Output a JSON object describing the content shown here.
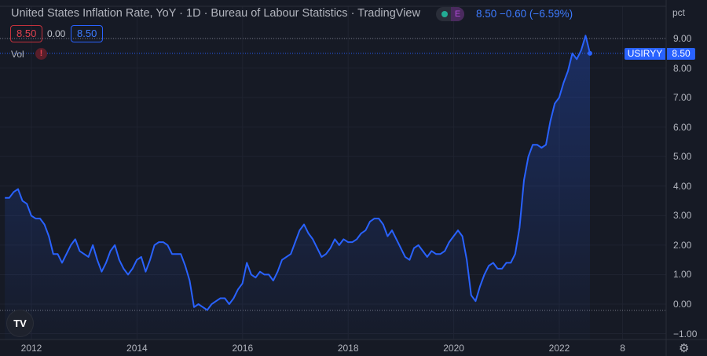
{
  "header": {
    "title": "United States Inflation Rate, YoY · 1D · Bureau of Labour Statistics · TradingView",
    "open_badge": "8.50",
    "change_value": "0.00",
    "close_badge": "8.50",
    "quote": "8.50 −0.60 (−6.59%)",
    "earnings_label": "E",
    "vol_label": "Vol",
    "warning_glyph": "!"
  },
  "axis": {
    "unit": "pct",
    "symbol_tag": "USIRYY",
    "price_tag": "8.50",
    "logo": "TV"
  },
  "colors": {
    "line": "#2962ff",
    "background": "#161a25",
    "grid": "#232734",
    "text": "#b2b5be",
    "red": "#e0424f"
  },
  "chart_data": {
    "type": "area",
    "title": "United States Inflation Rate, YoY",
    "ylabel": "pct",
    "ylim": [
      -1,
      9.5
    ],
    "yticks": [
      "9.00",
      "8.00",
      "7.00",
      "6.00",
      "5.00",
      "4.00",
      "3.00",
      "2.00",
      "1.00",
      "0.00",
      "−1.00"
    ],
    "ytick_values": [
      9,
      8,
      7,
      6,
      5,
      4,
      3,
      2,
      1,
      0,
      -1
    ],
    "xticks": [
      "2012",
      "2014",
      "2016",
      "2018",
      "2020",
      "2022",
      "8"
    ],
    "xtick_values": [
      2012,
      2014,
      2016,
      2018,
      2020,
      2022,
      2023.2
    ],
    "start": "2011-06",
    "frequency": "monthly",
    "values": [
      3.6,
      3.6,
      3.8,
      3.9,
      3.5,
      3.4,
      3.0,
      2.9,
      2.9,
      2.7,
      2.3,
      1.7,
      1.7,
      1.4,
      1.7,
      2.0,
      2.2,
      1.8,
      1.7,
      1.6,
      2.0,
      1.5,
      1.1,
      1.4,
      1.8,
      2.0,
      1.5,
      1.2,
      1.0,
      1.2,
      1.5,
      1.6,
      1.1,
      1.5,
      2.0,
      2.1,
      2.1,
      2.0,
      1.7,
      1.7,
      1.7,
      1.3,
      0.8,
      -0.1,
      0.0,
      -0.1,
      -0.2,
      0.0,
      0.1,
      0.2,
      0.2,
      0.0,
      0.2,
      0.5,
      0.7,
      1.4,
      1.0,
      0.9,
      1.1,
      1.0,
      1.0,
      0.8,
      1.1,
      1.5,
      1.6,
      1.7,
      2.1,
      2.5,
      2.7,
      2.4,
      2.2,
      1.9,
      1.6,
      1.7,
      1.9,
      2.2,
      2.0,
      2.2,
      2.1,
      2.1,
      2.2,
      2.4,
      2.5,
      2.8,
      2.9,
      2.9,
      2.7,
      2.3,
      2.5,
      2.2,
      1.9,
      1.6,
      1.5,
      1.9,
      2.0,
      1.8,
      1.6,
      1.8,
      1.7,
      1.7,
      1.8,
      2.1,
      2.3,
      2.5,
      2.3,
      1.5,
      0.3,
      0.1,
      0.6,
      1.0,
      1.3,
      1.4,
      1.2,
      1.2,
      1.4,
      1.4,
      1.7,
      2.6,
      4.2,
      5.0,
      5.4,
      5.4,
      5.3,
      5.4,
      6.2,
      6.8,
      7.0,
      7.5,
      7.9,
      8.5,
      8.3,
      8.6,
      9.1,
      8.5
    ],
    "last_value": 8.5,
    "high_line": 9.0,
    "low_line": 0.0
  }
}
